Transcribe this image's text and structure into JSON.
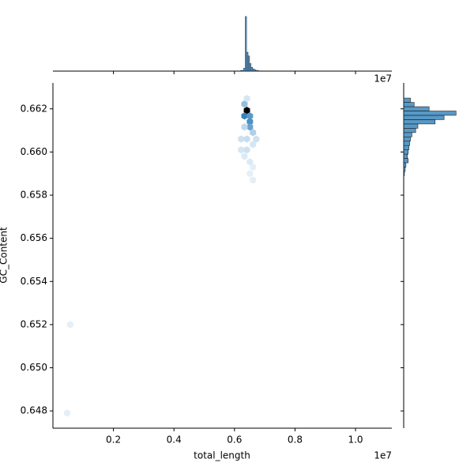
{
  "chart_data": {
    "type": "hexbin",
    "x_label": "total_length",
    "y_label": "GC_Content",
    "x_offset_label": "1e7",
    "color": "#1f77b4",
    "xlim": [
      0.0,
      1.12
    ],
    "ylim": [
      0.6472,
      0.6632
    ],
    "xticks": [
      0.2,
      0.4,
      0.6,
      0.8,
      {
        "value": 1.0,
        "label": "1.0"
      }
    ],
    "yticks": [
      0.648,
      {
        "value": 0.65,
        "label": "0.650"
      },
      0.652,
      0.654,
      0.656,
      0.658,
      {
        "value": 0.66,
        "label": "0.660"
      },
      0.662
    ],
    "x": [
      0.641,
      0.633,
      0.651,
      0.633,
      0.651,
      0.651,
      0.661,
      0.633,
      0.641,
      0.622,
      0.641,
      0.672,
      0.622,
      0.641,
      0.661,
      0.633,
      0.651,
      0.661,
      0.651,
      0.661,
      0.057,
      0.047
    ],
    "y": [
      0.66193,
      0.66167,
      0.66167,
      0.66222,
      0.66141,
      0.66116,
      0.6609,
      0.66116,
      0.66248,
      0.6606,
      0.6606,
      0.6606,
      0.6601,
      0.6601,
      0.66035,
      0.6598,
      0.65954,
      0.6593,
      0.659,
      0.6587,
      0.652,
      0.6479
    ],
    "counts": [
      40,
      25,
      20,
      12,
      22,
      18,
      8,
      6,
      3,
      4,
      5,
      4,
      3,
      4,
      3,
      2,
      2,
      1,
      1,
      1,
      1,
      1
    ],
    "x_hist": {
      "bins": [
        0.62,
        0.625,
        0.63,
        0.635,
        0.64,
        0.645,
        0.65,
        0.655,
        0.66,
        0.665,
        0.67,
        0.675,
        0.68
      ],
      "counts": [
        1,
        1,
        4,
        72,
        25,
        20,
        10,
        5,
        3,
        2,
        1,
        1
      ],
      "count_lim": [
        0,
        75
      ]
    },
    "y_hist": {
      "bins": [
        0.6589,
        0.6591,
        0.6593,
        0.6595,
        0.6597,
        0.6599,
        0.6601,
        0.6603,
        0.6605,
        0.6607,
        0.6609,
        0.6611,
        0.6613,
        0.6615,
        0.6617,
        0.6619,
        0.6621,
        0.6623,
        0.6625
      ],
      "counts": [
        1,
        2,
        3,
        6,
        5,
        6,
        7,
        8,
        9,
        11,
        16,
        19,
        42,
        54,
        70,
        34,
        14,
        9
      ],
      "count_lim": [
        0,
        75
      ]
    }
  }
}
